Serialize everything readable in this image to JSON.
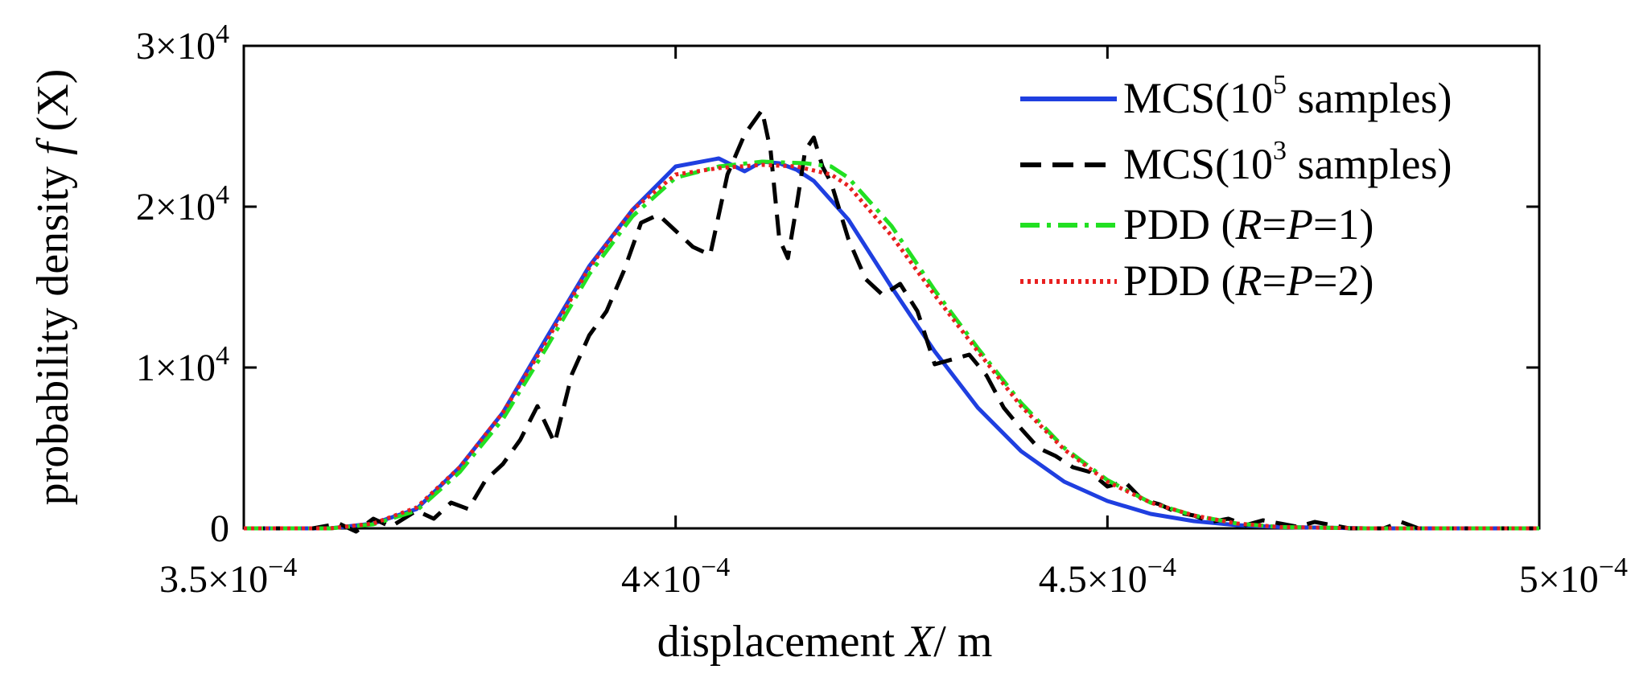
{
  "chart_data": {
    "type": "line",
    "title": "",
    "xlabel": {
      "main": "displacement ",
      "var": "X",
      "unit": "/ m"
    },
    "ylabel": {
      "main": "probability density ",
      "f": "f",
      "paren": " (X)"
    },
    "xlim": [
      0.00035,
      0.0005
    ],
    "ylim": [
      0,
      30000
    ],
    "x_ticks": [
      {
        "value": 0.00035,
        "mant": "3.5",
        "exp": "−4"
      },
      {
        "value": 0.0004,
        "mant": "4",
        "exp": "−4"
      },
      {
        "value": 0.00045,
        "mant": "4.5",
        "exp": "−4"
      },
      {
        "value": 0.0005,
        "mant": "5",
        "exp": "−4"
      }
    ],
    "y_ticks": [
      {
        "value": 0,
        "mant": "0",
        "exp": ""
      },
      {
        "value": 10000,
        "mant": "1",
        "exp": "4"
      },
      {
        "value": 20000,
        "mant": "2",
        "exp": "4"
      },
      {
        "value": 30000,
        "mant": "3",
        "exp": "4"
      }
    ],
    "legend_position": "top-right",
    "series": [
      {
        "name": "MCS(10^5 samples)",
        "legend_pre": "MCS(10",
        "legend_sup": "5",
        "legend_post": " samples)",
        "color": "#1f3fe0",
        "style": "solid",
        "x": [
          0.00035,
          0.00036,
          0.000365,
          0.00037,
          0.000375,
          0.00038,
          0.000385,
          0.00039,
          0.000395,
          0.0004,
          0.000405,
          0.000408,
          0.00041,
          0.000412,
          0.000414,
          0.000416,
          0.00042,
          0.000425,
          0.00043,
          0.000435,
          0.00044,
          0.000445,
          0.00045,
          0.000455,
          0.00046,
          0.000465,
          0.00047,
          0.00048,
          0.0005
        ],
        "y": [
          0,
          0,
          300,
          1200,
          3800,
          7200,
          11800,
          16300,
          19800,
          22500,
          23000,
          22200,
          22800,
          22700,
          22300,
          21600,
          19200,
          15000,
          11000,
          7500,
          4800,
          2900,
          1700,
          900,
          450,
          200,
          80,
          0,
          0
        ]
      },
      {
        "name": "MCS(10^3 samples)",
        "legend_pre": "MCS(10",
        "legend_sup": "3",
        "legend_post": " samples)",
        "color": "#000000",
        "style": "dashed",
        "x": [
          0.00035,
          0.000358,
          0.000361,
          0.000363,
          0.000365,
          0.000367,
          0.00037,
          0.000372,
          0.000374,
          0.000376,
          0.000378,
          0.00038,
          0.000382,
          0.000384,
          0.000386,
          0.000388,
          0.00039,
          0.000392,
          0.000394,
          0.000396,
          0.000398,
          0.0004,
          0.000402,
          0.000404,
          0.000406,
          0.000408,
          0.00041,
          0.000411,
          0.000412,
          0.000413,
          0.000414,
          0.000415,
          0.000416,
          0.000417,
          0.000418,
          0.00042,
          0.000422,
          0.000424,
          0.000426,
          0.000428,
          0.00043,
          0.000432,
          0.000434,
          0.000436,
          0.000438,
          0.00044,
          0.000442,
          0.000444,
          0.000446,
          0.000448,
          0.00045,
          0.000452,
          0.000454,
          0.000456,
          0.000458,
          0.00046,
          0.000462,
          0.000464,
          0.000466,
          0.000468,
          0.00047,
          0.000472,
          0.000474,
          0.000476,
          0.000478,
          0.00048,
          0.000482,
          0.000484,
          0.000486,
          0.0005
        ],
        "y": [
          0,
          0,
          300,
          -200,
          600,
          100,
          1100,
          600,
          1600,
          1200,
          3000,
          4000,
          5500,
          7600,
          5300,
          9600,
          12000,
          13500,
          16000,
          19000,
          19500,
          18500,
          17500,
          17000,
          22000,
          24500,
          26000,
          23500,
          18000,
          16800,
          20000,
          23500,
          24300,
          22500,
          21500,
          18000,
          15500,
          14500,
          15200,
          13500,
          10200,
          10500,
          10800,
          9500,
          7500,
          6200,
          5000,
          4500,
          3800,
          3500,
          2600,
          2900,
          1800,
          1500,
          1000,
          800,
          400,
          600,
          200,
          500,
          300,
          100,
          400,
          200,
          0,
          0,
          0,
          400,
          0,
          0
        ]
      },
      {
        "name": "PDD (R=P=1)",
        "legend_pre": "PDD (",
        "legend_r": "R",
        "legend_mid": "=",
        "legend_p": "P",
        "legend_post": "=1)",
        "color": "#22e022",
        "style": "dashdot",
        "x": [
          0.00035,
          0.00036,
          0.000365,
          0.00037,
          0.000375,
          0.00038,
          0.000385,
          0.00039,
          0.000395,
          0.0004,
          0.000405,
          0.00041,
          0.000415,
          0.000418,
          0.00042,
          0.000425,
          0.00043,
          0.000435,
          0.00044,
          0.000445,
          0.00045,
          0.000455,
          0.00046,
          0.000465,
          0.00047,
          0.00048,
          0.0005
        ],
        "y": [
          0,
          0,
          250,
          1100,
          3500,
          6800,
          11200,
          15800,
          19400,
          21800,
          22500,
          22800,
          22700,
          22500,
          21800,
          18800,
          14800,
          11200,
          7800,
          5000,
          3000,
          1600,
          800,
          300,
          80,
          0,
          0
        ]
      },
      {
        "name": "PDD (R=P=2)",
        "legend_pre": "PDD (",
        "legend_r": "R",
        "legend_mid": "=",
        "legend_p": "P",
        "legend_post": "=2)",
        "color": "#e82020",
        "style": "dotted",
        "x": [
          0.00035,
          0.00036,
          0.000365,
          0.00037,
          0.000375,
          0.00038,
          0.000385,
          0.00039,
          0.000395,
          0.0004,
          0.000405,
          0.00041,
          0.000414,
          0.000418,
          0.00042,
          0.000425,
          0.00043,
          0.000435,
          0.00044,
          0.000445,
          0.00045,
          0.000455,
          0.00046,
          0.000465,
          0.00047,
          0.00048,
          0.0005
        ],
        "y": [
          0,
          0,
          300,
          1300,
          3800,
          7200,
          11600,
          16200,
          19800,
          22000,
          22400,
          22600,
          22500,
          22000,
          21300,
          18200,
          14500,
          11000,
          7600,
          4900,
          2900,
          1600,
          800,
          300,
          80,
          0,
          0
        ]
      }
    ]
  }
}
